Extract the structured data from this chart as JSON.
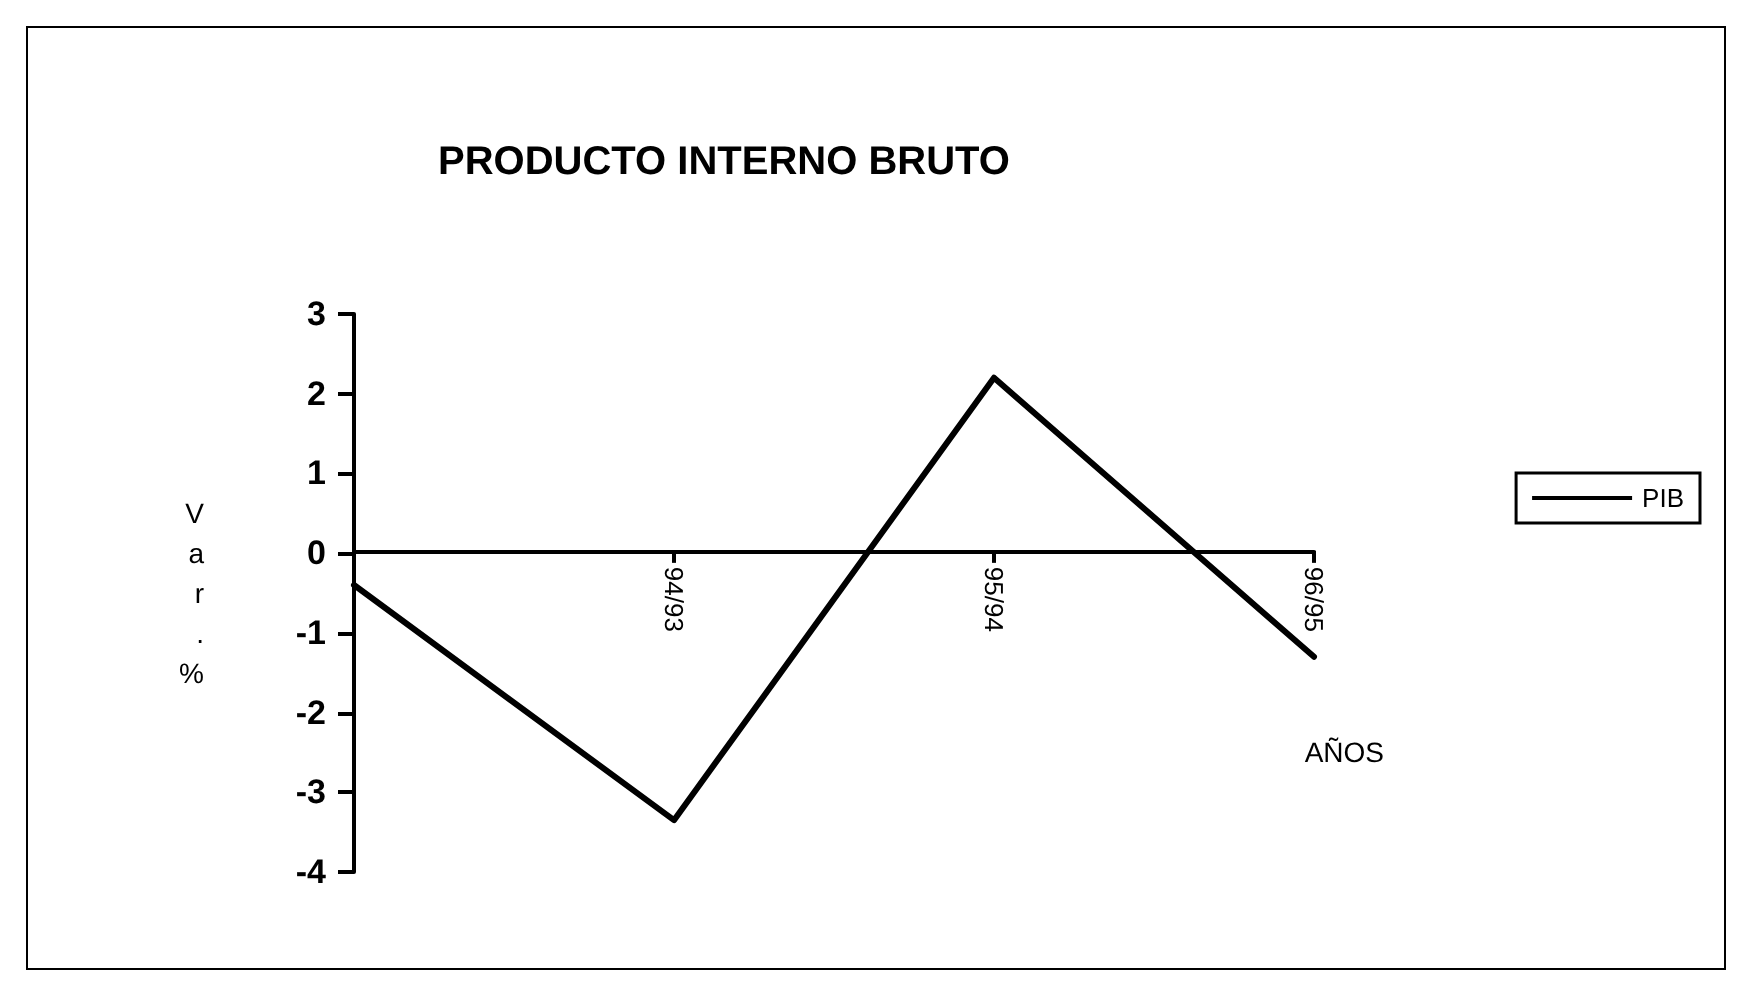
{
  "chart_data": {
    "type": "line",
    "title": "PRODUCTO INTERNO BRUTO",
    "xlabel": "AÑOS",
    "ylabel": "Var.%",
    "categories": [
      null,
      "94/93",
      "95/94",
      "96/95"
    ],
    "series": [
      {
        "name": "PIB",
        "color": "#000000",
        "values": [
          -0.4,
          -3.35,
          2.2,
          -1.3
        ]
      }
    ],
    "ylim": [
      -4,
      3
    ],
    "yticks": [
      -4,
      -3,
      -2,
      -1,
      0,
      1,
      2,
      3
    ],
    "legend": "right",
    "marker": "none",
    "line_style": "solid"
  }
}
